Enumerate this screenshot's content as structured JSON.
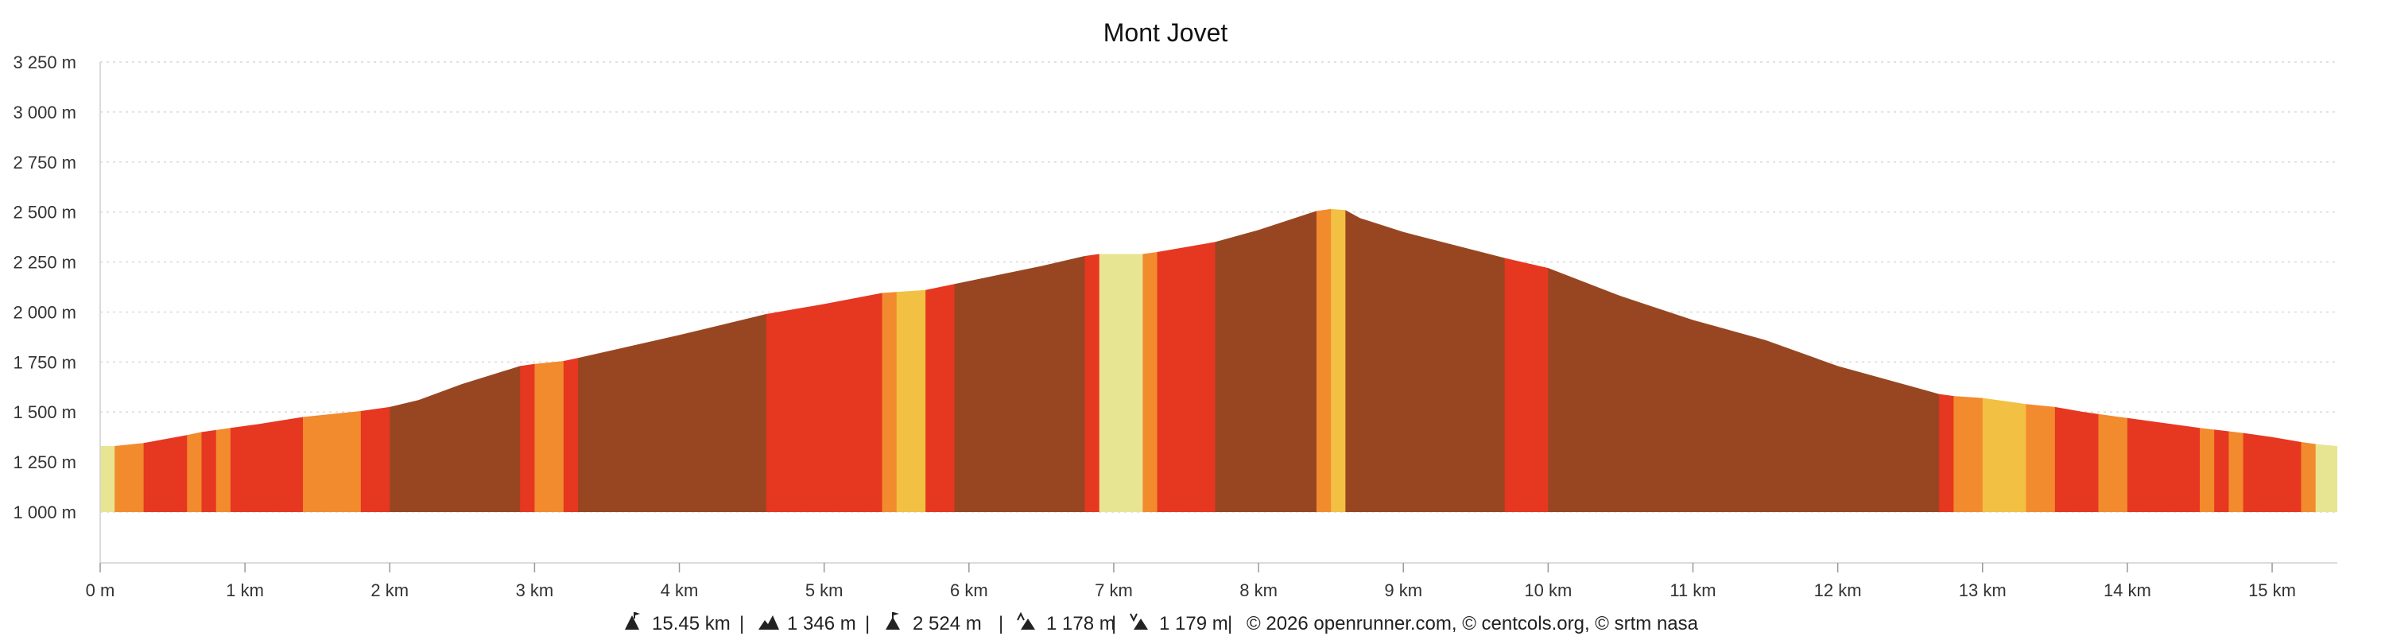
{
  "chart_data": {
    "type": "area",
    "title": "Mont Jovet",
    "xlim": [
      0,
      15.45
    ],
    "ylim": [
      1000,
      3250
    ],
    "xticks": [
      0,
      1,
      2,
      3,
      4,
      5,
      6,
      7,
      8,
      9,
      10,
      11,
      12,
      13,
      14,
      15
    ],
    "xtick_labels": [
      "0 m",
      "1 km",
      "2 km",
      "3 km",
      "4 km",
      "5 km",
      "6 km",
      "7 km",
      "8 km",
      "9 km",
      "10 km",
      "11 km",
      "12 km",
      "13 km",
      "14 km",
      "15 km"
    ],
    "yticks": [
      1000,
      1250,
      1500,
      1750,
      2000,
      2250,
      2500,
      2750,
      3000,
      3250
    ],
    "ytick_labels": [
      "1 000 m",
      "1 250 m",
      "1 500 m",
      "1 750 m",
      "2 000 m",
      "2 250 m",
      "2 500 m",
      "2 750 m",
      "3 000 m",
      "3 250 m"
    ],
    "grid": true,
    "profile": {
      "x": [
        0,
        0.1,
        0.3,
        0.6,
        0.7,
        0.8,
        0.9,
        1.1,
        1.4,
        1.8,
        2.0,
        2.2,
        2.5,
        2.9,
        3.0,
        3.2,
        3.3,
        4.0,
        4.6,
        5.0,
        5.4,
        5.5,
        5.7,
        5.9,
        6.5,
        6.8,
        6.9,
        7.2,
        7.3,
        7.7,
        8.0,
        8.4,
        8.5,
        8.6,
        8.7,
        9.0,
        9.7,
        10.0,
        10.5,
        11.0,
        11.5,
        12.0,
        12.7,
        12.8,
        13.0,
        13.3,
        13.5,
        13.7,
        14.0,
        14.5,
        14.8,
        15.0,
        15.2,
        15.3,
        15.45
      ],
      "y": [
        1330,
        1330,
        1345,
        1385,
        1400,
        1410,
        1420,
        1440,
        1475,
        1505,
        1525,
        1560,
        1640,
        1730,
        1740,
        1755,
        1770,
        1885,
        1990,
        2040,
        2095,
        2100,
        2110,
        2140,
        2230,
        2280,
        2290,
        2290,
        2300,
        2350,
        2410,
        2505,
        2515,
        2510,
        2470,
        2400,
        2270,
        2220,
        2080,
        1960,
        1860,
        1730,
        1590,
        1580,
        1570,
        1540,
        1525,
        1500,
        1470,
        1420,
        1395,
        1375,
        1350,
        1340,
        1330
      ]
    },
    "slope_segments": [
      {
        "from": 0.0,
        "to": 0.1,
        "color": "#e8e592"
      },
      {
        "from": 0.1,
        "to": 0.3,
        "color": "#f28a2e"
      },
      {
        "from": 0.3,
        "to": 0.6,
        "color": "#e63720"
      },
      {
        "from": 0.6,
        "to": 0.7,
        "color": "#f28a2e"
      },
      {
        "from": 0.7,
        "to": 0.8,
        "color": "#e63720"
      },
      {
        "from": 0.8,
        "to": 0.9,
        "color": "#f28a2e"
      },
      {
        "from": 0.9,
        "to": 1.4,
        "color": "#e63720"
      },
      {
        "from": 1.4,
        "to": 1.8,
        "color": "#f28a2e"
      },
      {
        "from": 1.8,
        "to": 2.0,
        "color": "#e63720"
      },
      {
        "from": 2.0,
        "to": 2.9,
        "color": "#984621"
      },
      {
        "from": 2.9,
        "to": 3.0,
        "color": "#e63720"
      },
      {
        "from": 3.0,
        "to": 3.2,
        "color": "#f28a2e"
      },
      {
        "from": 3.2,
        "to": 3.3,
        "color": "#e63720"
      },
      {
        "from": 3.3,
        "to": 4.6,
        "color": "#984621"
      },
      {
        "from": 4.6,
        "to": 5.4,
        "color": "#e63720"
      },
      {
        "from": 5.4,
        "to": 5.5,
        "color": "#f28a2e"
      },
      {
        "from": 5.5,
        "to": 5.7,
        "color": "#f2c042"
      },
      {
        "from": 5.7,
        "to": 5.9,
        "color": "#e63720"
      },
      {
        "from": 5.9,
        "to": 6.8,
        "color": "#984621"
      },
      {
        "from": 6.8,
        "to": 6.9,
        "color": "#e63720"
      },
      {
        "from": 6.9,
        "to": 7.2,
        "color": "#e8e592"
      },
      {
        "from": 7.2,
        "to": 7.3,
        "color": "#f28a2e"
      },
      {
        "from": 7.3,
        "to": 7.7,
        "color": "#e63720"
      },
      {
        "from": 7.7,
        "to": 8.4,
        "color": "#984621"
      },
      {
        "from": 8.4,
        "to": 8.5,
        "color": "#f28a2e"
      },
      {
        "from": 8.5,
        "to": 8.6,
        "color": "#f2c042"
      },
      {
        "from": 8.6,
        "to": 9.7,
        "color": "#984621"
      },
      {
        "from": 9.7,
        "to": 10.0,
        "color": "#e63720"
      },
      {
        "from": 10.0,
        "to": 12.7,
        "color": "#984621"
      },
      {
        "from": 12.7,
        "to": 12.8,
        "color": "#e63720"
      },
      {
        "from": 12.8,
        "to": 13.0,
        "color": "#f28a2e"
      },
      {
        "from": 13.0,
        "to": 13.3,
        "color": "#f2c042"
      },
      {
        "from": 13.3,
        "to": 13.5,
        "color": "#f28a2e"
      },
      {
        "from": 13.5,
        "to": 13.8,
        "color": "#e63720"
      },
      {
        "from": 13.8,
        "to": 14.0,
        "color": "#f28a2e"
      },
      {
        "from": 14.0,
        "to": 14.5,
        "color": "#e63720"
      },
      {
        "from": 14.5,
        "to": 14.6,
        "color": "#f28a2e"
      },
      {
        "from": 14.6,
        "to": 14.7,
        "color": "#e63720"
      },
      {
        "from": 14.7,
        "to": 14.8,
        "color": "#f28a2e"
      },
      {
        "from": 14.8,
        "to": 15.2,
        "color": "#e63720"
      },
      {
        "from": 15.2,
        "to": 15.3,
        "color": "#f28a2e"
      },
      {
        "from": 15.3,
        "to": 15.45,
        "color": "#e8e592"
      }
    ],
    "stats": {
      "distance": "15.45 km",
      "elevation_gain_total": "1 346 m",
      "max_altitude": "2 524 m",
      "ascent": "1 178 m",
      "descent": "1 179 m",
      "credits": "© 2026 openrunner.com, © centcols.org, © srtm nasa"
    }
  },
  "footer": {
    "separator": "|",
    "icons": [
      "distance-icon",
      "elevation-gain-icon",
      "max-altitude-icon",
      "ascent-icon",
      "descent-icon"
    ]
  }
}
